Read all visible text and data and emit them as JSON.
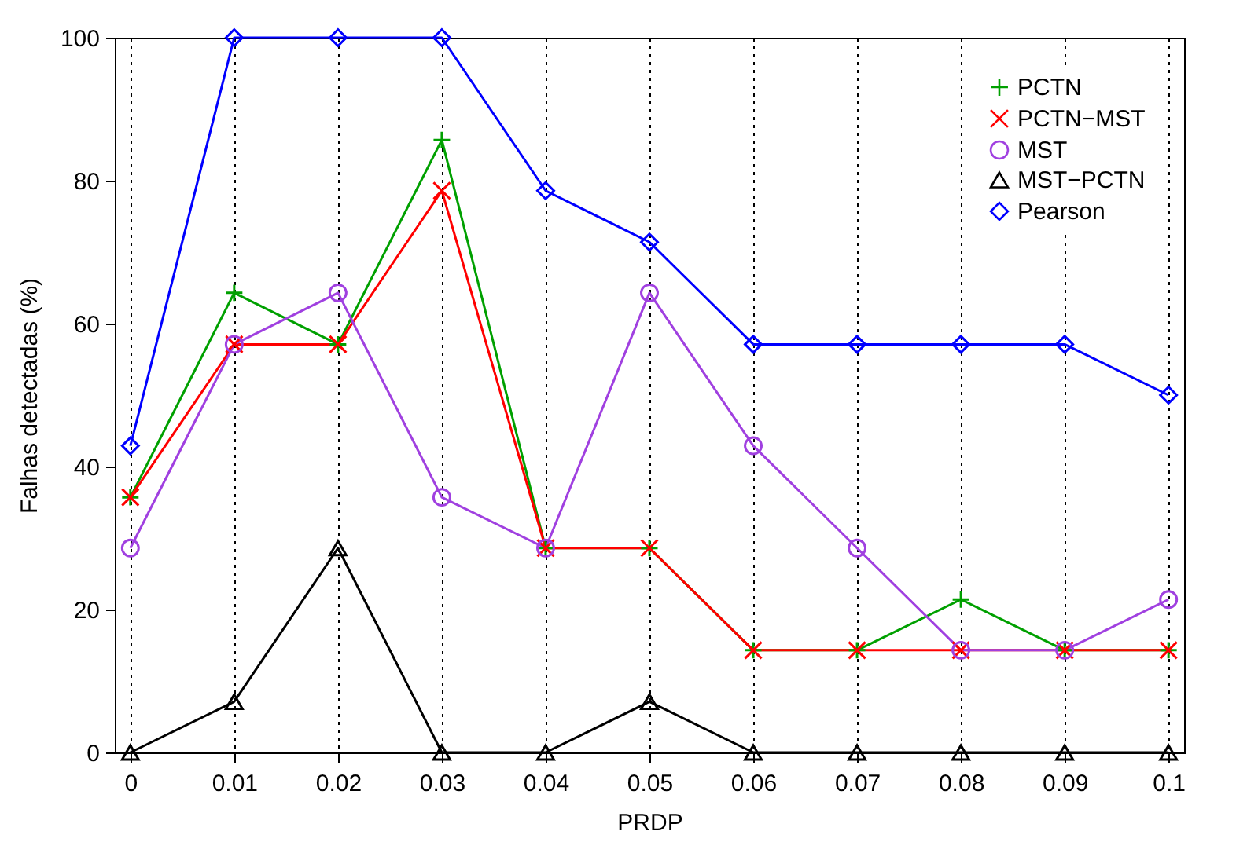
{
  "chart_data": {
    "type": "line",
    "xlabel": "PRDP",
    "ylabel": "Falhas detectadas (%)",
    "x": [
      0,
      0.01,
      0.02,
      0.03,
      0.04,
      0.05,
      0.06,
      0.07,
      0.08,
      0.09,
      0.1
    ],
    "xlim": [
      -0.0015,
      0.1015
    ],
    "xticks": [
      0,
      0.01,
      0.02,
      0.03,
      0.04,
      0.05,
      0.06,
      0.07,
      0.08,
      0.09,
      0.1
    ],
    "ylim": [
      0,
      100
    ],
    "yticks": [
      0,
      20,
      40,
      60,
      80,
      100
    ],
    "grid": "x",
    "legend": "top right",
    "series": [
      {
        "name": "PCTN",
        "color": "#00a000",
        "marker": "plus",
        "values": [
          35.7,
          64.3,
          57.1,
          85.7,
          28.6,
          28.6,
          14.3,
          14.3,
          21.4,
          14.3,
          14.3
        ]
      },
      {
        "name": "PCTN−MST",
        "color": "#ff0000",
        "marker": "cross",
        "values": [
          35.7,
          57.1,
          57.1,
          78.6,
          28.6,
          28.6,
          14.3,
          14.3,
          14.3,
          14.3,
          14.3
        ]
      },
      {
        "name": "MST",
        "color": "#a040e0",
        "marker": "circle",
        "values": [
          28.6,
          57.1,
          64.3,
          35.7,
          28.6,
          64.3,
          42.9,
          28.6,
          14.3,
          14.3,
          21.4
        ]
      },
      {
        "name": "MST−PCTN",
        "color": "#000000",
        "marker": "triangle",
        "values": [
          0,
          7.1,
          28.6,
          0,
          0,
          7.1,
          0,
          0,
          0,
          0,
          0
        ]
      },
      {
        "name": "Pearson",
        "color": "#0000ff",
        "marker": "diamond",
        "values": [
          42.9,
          100,
          100,
          100,
          78.6,
          71.4,
          57.1,
          57.1,
          57.1,
          57.1,
          50
        ]
      }
    ]
  }
}
